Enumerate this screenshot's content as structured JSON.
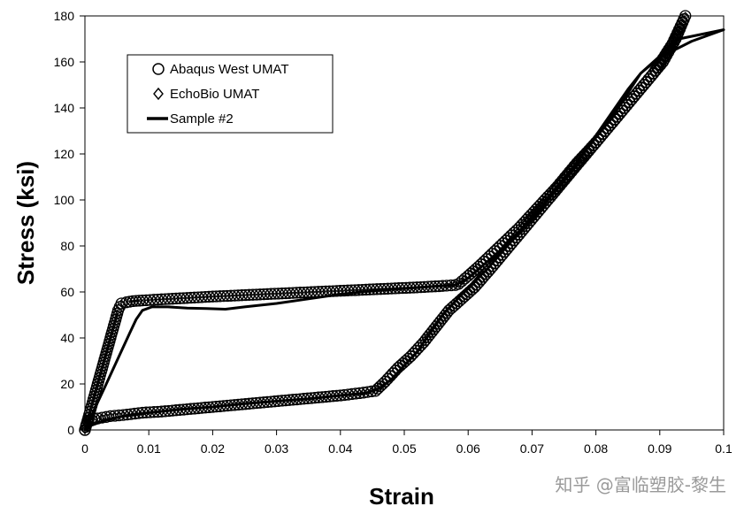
{
  "chart_data": {
    "type": "line",
    "xlabel": "Strain",
    "ylabel": "Stress (ksi)",
    "xlim": [
      0,
      0.1
    ],
    "ylim": [
      0,
      180
    ],
    "xticks": [
      "0",
      "0.01",
      "0.02",
      "0.03",
      "0.04",
      "0.05",
      "0.06",
      "0.07",
      "0.08",
      "0.09",
      "0.1"
    ],
    "yticks": [
      "0",
      "20",
      "40",
      "60",
      "80",
      "100",
      "120",
      "140",
      "160",
      "180"
    ],
    "grid": false,
    "legend_position": "top-left",
    "series": [
      {
        "name": "Abaqus West UMAT",
        "marker": "circle",
        "points": [
          [
            0,
            0
          ],
          [
            0.0004,
            4
          ],
          [
            0.0008,
            8
          ],
          [
            0.0012,
            12
          ],
          [
            0.0016,
            16
          ],
          [
            0.002,
            20
          ],
          [
            0.0024,
            24
          ],
          [
            0.0028,
            28
          ],
          [
            0.0032,
            32
          ],
          [
            0.0036,
            36
          ],
          [
            0.004,
            40
          ],
          [
            0.0044,
            44
          ],
          [
            0.0048,
            48
          ],
          [
            0.0052,
            52
          ],
          [
            0.0057,
            55
          ],
          [
            0.0065,
            55.5
          ],
          [
            0.0075,
            56
          ],
          [
            0.009,
            56.3
          ],
          [
            0.012,
            56.8
          ],
          [
            0.016,
            57.4
          ],
          [
            0.02,
            58
          ],
          [
            0.024,
            58.5
          ],
          [
            0.028,
            59
          ],
          [
            0.032,
            59.5
          ],
          [
            0.036,
            60
          ],
          [
            0.04,
            60.5
          ],
          [
            0.044,
            61
          ],
          [
            0.048,
            61.5
          ],
          [
            0.052,
            62
          ],
          [
            0.056,
            62.6
          ],
          [
            0.058,
            63
          ],
          [
            0.0585,
            63.5
          ],
          [
            0.06,
            67
          ],
          [
            0.062,
            72
          ],
          [
            0.065,
            80
          ],
          [
            0.068,
            88
          ],
          [
            0.071,
            97
          ],
          [
            0.074,
            106
          ],
          [
            0.077,
            116
          ],
          [
            0.08,
            125
          ],
          [
            0.083,
            135
          ],
          [
            0.086,
            145
          ],
          [
            0.089,
            155
          ],
          [
            0.092,
            168
          ],
          [
            0.094,
            180
          ],
          [
            0.0925,
            170
          ],
          [
            0.0905,
            160
          ],
          [
            0.0875,
            150
          ],
          [
            0.0845,
            140
          ],
          [
            0.0815,
            130
          ],
          [
            0.0785,
            120
          ],
          [
            0.0755,
            110
          ],
          [
            0.0725,
            100
          ],
          [
            0.0695,
            90
          ],
          [
            0.0665,
            80
          ],
          [
            0.0635,
            70
          ],
          [
            0.061,
            62
          ],
          [
            0.059,
            57
          ],
          [
            0.057,
            52
          ],
          [
            0.055,
            45
          ],
          [
            0.053,
            38
          ],
          [
            0.051,
            32
          ],
          [
            0.049,
            27
          ],
          [
            0.047,
            21
          ],
          [
            0.0455,
            17
          ],
          [
            0.043,
            16
          ],
          [
            0.04,
            15
          ],
          [
            0.036,
            14
          ],
          [
            0.032,
            13
          ],
          [
            0.028,
            12
          ],
          [
            0.024,
            11
          ],
          [
            0.02,
            10
          ],
          [
            0.016,
            9
          ],
          [
            0.012,
            8
          ],
          [
            0.009,
            7.5
          ],
          [
            0.006,
            6.5
          ],
          [
            0.004,
            6
          ],
          [
            0.002,
            5
          ],
          [
            0.001,
            4.5
          ],
          [
            0.0005,
            3.5
          ],
          [
            0.0002,
            2
          ],
          [
            0,
            0
          ]
        ]
      },
      {
        "name": "EchoBio UMAT",
        "marker": "diamond",
        "points": [
          [
            0,
            0
          ],
          [
            0.0004,
            4
          ],
          [
            0.0008,
            8
          ],
          [
            0.0012,
            12
          ],
          [
            0.0016,
            16
          ],
          [
            0.002,
            20
          ],
          [
            0.0024,
            24
          ],
          [
            0.0028,
            28
          ],
          [
            0.0032,
            32
          ],
          [
            0.0036,
            36
          ],
          [
            0.004,
            40
          ],
          [
            0.0044,
            44
          ],
          [
            0.0048,
            48
          ],
          [
            0.0052,
            52
          ],
          [
            0.0057,
            55
          ],
          [
            0.0065,
            55.5
          ],
          [
            0.0075,
            56
          ],
          [
            0.009,
            56.3
          ],
          [
            0.012,
            56.8
          ],
          [
            0.016,
            57.4
          ],
          [
            0.02,
            58
          ],
          [
            0.024,
            58.5
          ],
          [
            0.028,
            59
          ],
          [
            0.032,
            59.5
          ],
          [
            0.036,
            60
          ],
          [
            0.04,
            60.5
          ],
          [
            0.044,
            61
          ],
          [
            0.048,
            61.5
          ],
          [
            0.052,
            62
          ],
          [
            0.056,
            62.6
          ],
          [
            0.058,
            63
          ],
          [
            0.0585,
            63.5
          ],
          [
            0.06,
            67
          ],
          [
            0.062,
            72
          ],
          [
            0.065,
            80
          ],
          [
            0.068,
            88
          ],
          [
            0.071,
            97
          ],
          [
            0.074,
            106
          ],
          [
            0.077,
            116
          ],
          [
            0.08,
            125
          ],
          [
            0.083,
            135
          ],
          [
            0.086,
            145
          ],
          [
            0.089,
            155
          ],
          [
            0.092,
            168
          ],
          [
            0.094,
            180
          ],
          [
            0.0925,
            170
          ],
          [
            0.0905,
            160
          ],
          [
            0.0875,
            150
          ],
          [
            0.0845,
            140
          ],
          [
            0.0815,
            130
          ],
          [
            0.0785,
            120
          ],
          [
            0.0755,
            110
          ],
          [
            0.0725,
            100
          ],
          [
            0.0695,
            90
          ],
          [
            0.0665,
            80
          ],
          [
            0.0635,
            70
          ],
          [
            0.061,
            62
          ],
          [
            0.059,
            57
          ],
          [
            0.057,
            52
          ],
          [
            0.055,
            45
          ],
          [
            0.053,
            38
          ],
          [
            0.051,
            32
          ],
          [
            0.049,
            27
          ],
          [
            0.047,
            21
          ],
          [
            0.0455,
            17
          ],
          [
            0.043,
            16
          ],
          [
            0.04,
            15
          ],
          [
            0.036,
            14
          ],
          [
            0.032,
            13
          ],
          [
            0.028,
            12
          ],
          [
            0.024,
            11
          ],
          [
            0.02,
            10
          ],
          [
            0.016,
            9
          ],
          [
            0.012,
            8
          ],
          [
            0.009,
            7.5
          ],
          [
            0.006,
            6.5
          ],
          [
            0.004,
            6
          ],
          [
            0.002,
            5
          ],
          [
            0.001,
            4.5
          ],
          [
            0.0005,
            3.5
          ],
          [
            0.0002,
            2
          ],
          [
            0,
            0
          ]
        ]
      },
      {
        "name": "Sample #2",
        "marker": "none",
        "points": [
          [
            0,
            0
          ],
          [
            0.001,
            6
          ],
          [
            0.002,
            12
          ],
          [
            0.003,
            18
          ],
          [
            0.004,
            24
          ],
          [
            0.005,
            30
          ],
          [
            0.006,
            36
          ],
          [
            0.007,
            42
          ],
          [
            0.008,
            48
          ],
          [
            0.009,
            52
          ],
          [
            0.0105,
            53.5
          ],
          [
            0.013,
            53.5
          ],
          [
            0.016,
            53
          ],
          [
            0.019,
            52.8
          ],
          [
            0.022,
            52.5
          ],
          [
            0.025,
            53.5
          ],
          [
            0.03,
            55
          ],
          [
            0.035,
            57
          ],
          [
            0.04,
            59
          ],
          [
            0.045,
            60.5
          ],
          [
            0.05,
            61.5
          ],
          [
            0.055,
            62.5
          ],
          [
            0.058,
            63
          ],
          [
            0.06,
            66
          ],
          [
            0.065,
            78
          ],
          [
            0.07,
            92
          ],
          [
            0.075,
            108
          ],
          [
            0.08,
            128
          ],
          [
            0.085,
            148
          ],
          [
            0.087,
            155
          ],
          [
            0.09,
            162
          ],
          [
            0.095,
            169
          ],
          [
            0.1,
            174
          ],
          [
            0.1,
            174
          ],
          [
            0.093,
            170
          ],
          [
            0.087,
            155
          ],
          [
            0.083,
            138
          ],
          [
            0.078,
            120
          ],
          [
            0.073,
            102
          ],
          [
            0.068,
            86
          ],
          [
            0.063,
            70
          ],
          [
            0.06,
            62
          ],
          [
            0.058,
            56
          ],
          [
            0.056,
            50
          ],
          [
            0.054,
            42
          ],
          [
            0.052,
            34
          ],
          [
            0.05,
            28
          ],
          [
            0.048,
            22
          ],
          [
            0.046,
            18
          ],
          [
            0.044,
            16
          ],
          [
            0.04,
            15
          ],
          [
            0.035,
            13.5
          ],
          [
            0.03,
            12.5
          ],
          [
            0.025,
            11.5
          ],
          [
            0.02,
            10
          ],
          [
            0.015,
            9
          ],
          [
            0.01,
            7.5
          ],
          [
            0.006,
            6
          ],
          [
            0.003,
            4
          ],
          [
            0.001,
            2
          ],
          [
            0,
            0
          ]
        ]
      }
    ]
  },
  "watermark": "知乎 @富临塑胶-黎生"
}
